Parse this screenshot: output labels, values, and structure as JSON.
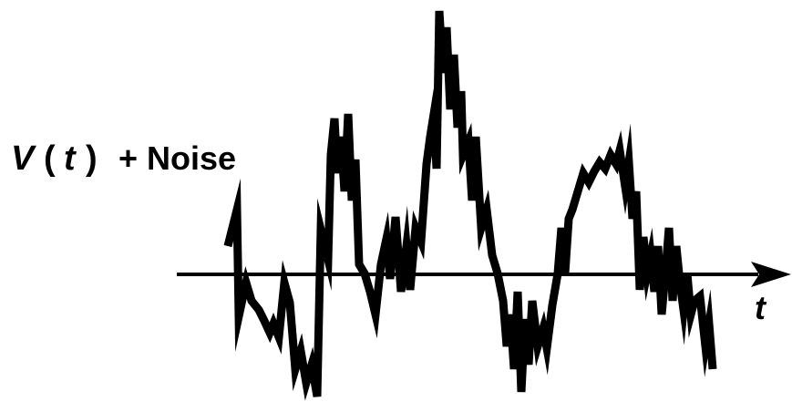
{
  "diagram": {
    "signal_label": {
      "v": "V",
      "open_paren": "(",
      "t": "t",
      "close_paren": ")",
      "plus_noise": "+ Noise"
    },
    "axis_label": "t",
    "colors": {
      "stroke": "#000000",
      "background": "#ffffff"
    }
  }
}
